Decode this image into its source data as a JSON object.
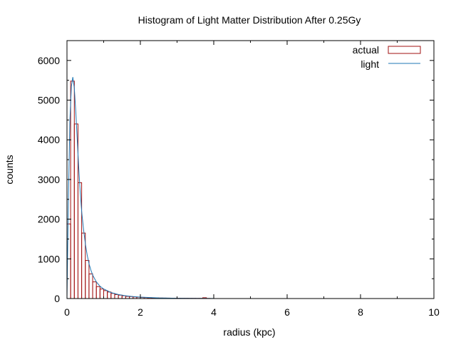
{
  "chart_data": {
    "type": "bar",
    "title": "Histogram of Light Matter Distribution After 0.25Gy",
    "xlabel": "radius (kpc)",
    "ylabel": "counts",
    "xlim": [
      0,
      10
    ],
    "ylim": [
      0,
      6500
    ],
    "x_ticks": [
      "0",
      "2",
      "4",
      "6",
      "8",
      "10"
    ],
    "y_ticks": [
      "0",
      "1000",
      "2000",
      "3000",
      "4000",
      "5000",
      "6000"
    ],
    "grid": false,
    "legend_position": "top-right",
    "series": [
      {
        "name": "actual",
        "style": "histogram-steps",
        "color": "#a01010",
        "bin_width": 0.1,
        "x": [
          0.05,
          0.15,
          0.25,
          0.35,
          0.45,
          0.55,
          0.65,
          0.75,
          0.85,
          0.95,
          1.05,
          1.15,
          1.25,
          1.35,
          1.45,
          1.55,
          1.65,
          1.75,
          1.85,
          1.95,
          2.05,
          2.15,
          2.25,
          2.35,
          2.45,
          2.55,
          2.65,
          2.75,
          2.85,
          2.95,
          3.05,
          3.15,
          3.25,
          3.35,
          3.45,
          3.55,
          3.65,
          3.75,
          3.85
        ],
        "values": [
          1880,
          5480,
          4400,
          2920,
          1650,
          960,
          620,
          420,
          300,
          240,
          200,
          165,
          130,
          100,
          85,
          70,
          55,
          48,
          40,
          34,
          28,
          24,
          20,
          17,
          15,
          13,
          11,
          10,
          9,
          8,
          7,
          6,
          6,
          5,
          5,
          4,
          4,
          20,
          3
        ]
      },
      {
        "name": "light",
        "style": "line",
        "color": "#1f77b4",
        "x": [
          0.0,
          0.04,
          0.08,
          0.12,
          0.16,
          0.2,
          0.24,
          0.28,
          0.32,
          0.36,
          0.4,
          0.45,
          0.5,
          0.55,
          0.6,
          0.65,
          0.7,
          0.8,
          0.9,
          1.0,
          1.2,
          1.4,
          1.6,
          1.8,
          2.0,
          2.5,
          3.0,
          3.5,
          4.0
        ],
        "values": [
          0,
          2600,
          4500,
          5350,
          5580,
          5300,
          4700,
          4000,
          3300,
          2700,
          2200,
          1750,
          1380,
          1100,
          880,
          720,
          590,
          420,
          310,
          240,
          150,
          100,
          70,
          50,
          36,
          16,
          8,
          4,
          2
        ]
      }
    ]
  }
}
